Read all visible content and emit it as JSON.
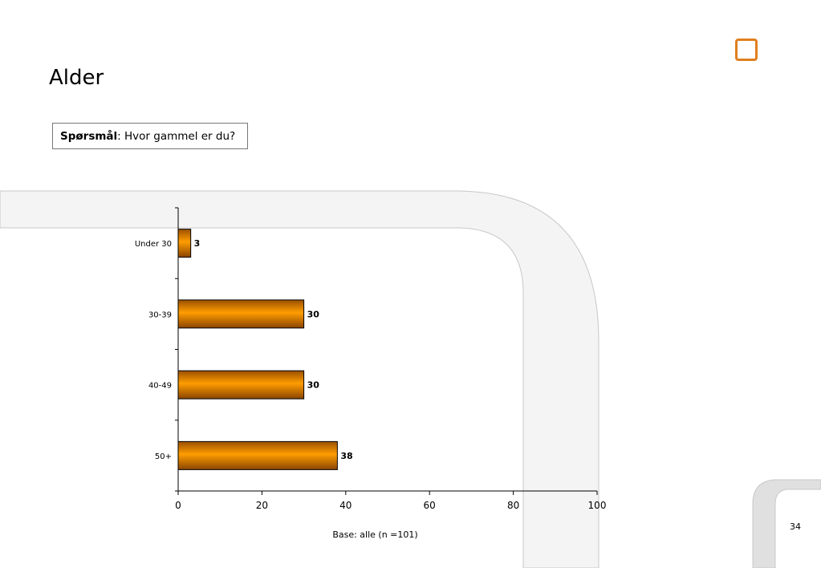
{
  "title": "Alder",
  "question": {
    "label": "Spørsmål",
    "text": ": Hvor gammel er du?"
  },
  "base_note": "Base: alle (n =101)",
  "page_number": "34",
  "colors": {
    "bar": "#ff9a00",
    "accent": "#e07f1f"
  },
  "chart_data": {
    "type": "bar",
    "orientation": "horizontal",
    "categories": [
      "Under 30",
      "30-39",
      "40-49",
      "50+"
    ],
    "values": [
      3,
      30,
      30,
      38
    ],
    "xlim": [
      0,
      100
    ],
    "xticks": [
      0,
      20,
      40,
      60,
      80,
      100
    ],
    "data_labels": true,
    "grid": false
  }
}
